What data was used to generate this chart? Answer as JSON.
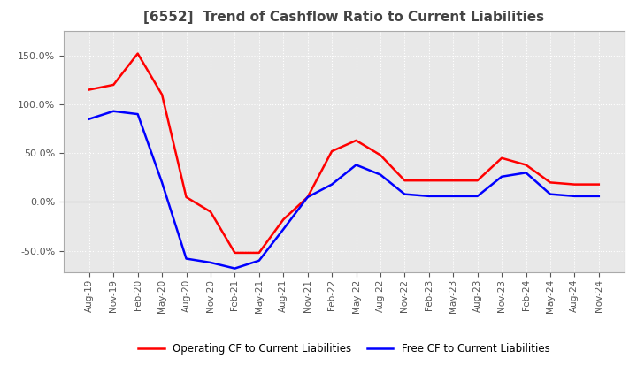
{
  "title": "[6552]  Trend of Cashflow Ratio to Current Liabilities",
  "title_fontsize": 11,
  "title_color": "#444444",
  "background_color": "#ffffff",
  "plot_bg_color": "#e8e8e8",
  "grid_color": "#ffffff",
  "operating_cf_color": "#ff0000",
  "free_cf_color": "#0000ff",
  "x_labels": [
    "Aug-19",
    "Nov-19",
    "Feb-20",
    "May-20",
    "Aug-20",
    "Nov-20",
    "Feb-21",
    "May-21",
    "Aug-21",
    "Nov-21",
    "Feb-22",
    "May-22",
    "Aug-22",
    "Nov-22",
    "Feb-23",
    "May-23",
    "Aug-23",
    "Nov-23",
    "Feb-24",
    "May-24",
    "Aug-24",
    "Nov-24"
  ],
  "operating_cf": [
    1.15,
    1.2,
    1.52,
    1.1,
    0.05,
    -0.1,
    -0.52,
    -0.52,
    -0.18,
    0.05,
    0.52,
    0.63,
    0.48,
    0.22,
    0.22,
    0.22,
    0.22,
    0.45,
    0.38,
    0.2,
    0.18,
    0.18
  ],
  "free_cf": [
    0.85,
    0.93,
    0.9,
    0.2,
    -0.58,
    -0.62,
    -0.68,
    -0.6,
    -0.28,
    0.05,
    0.18,
    0.38,
    0.28,
    0.08,
    0.06,
    0.06,
    0.06,
    0.26,
    0.3,
    0.08,
    0.06,
    0.06
  ],
  "yticks": [
    -0.5,
    0.0,
    0.5,
    1.0,
    1.5
  ],
  "ylim": [
    -0.72,
    1.75
  ],
  "legend_operating": "Operating CF to Current Liabilities",
  "legend_free": "Free CF to Current Liabilities",
  "line_width": 1.8
}
